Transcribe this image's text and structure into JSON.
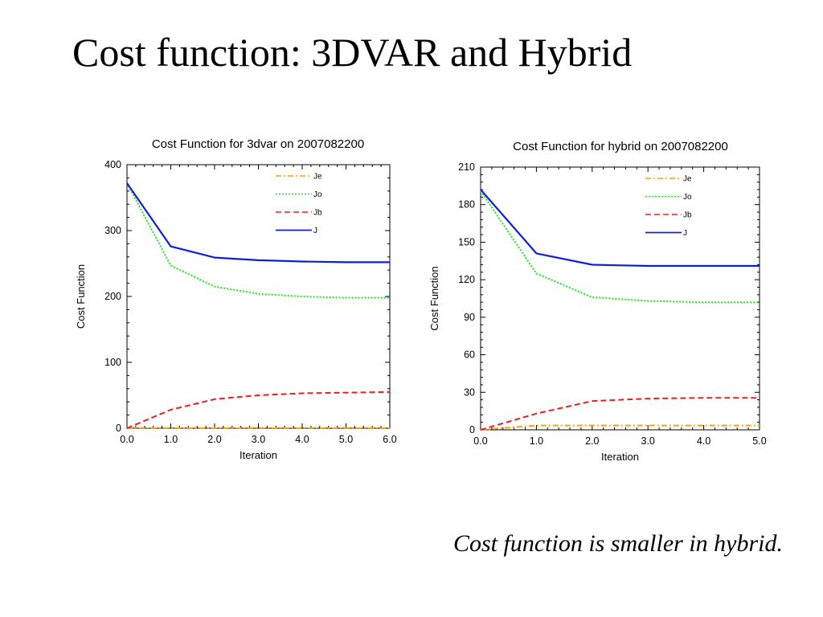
{
  "slide": {
    "title": "Cost function: 3DVAR and Hybrid",
    "caption": "Cost function is smaller in hybrid."
  },
  "chart_data": [
    {
      "type": "line",
      "title": "Cost Function for 3dvar on 2007082200",
      "xlabel": "Iteration",
      "ylabel": "Cost Function",
      "xlim": [
        0,
        6
      ],
      "ylim": [
        0,
        400
      ],
      "x": [
        0,
        1,
        2,
        3,
        4,
        5,
        6
      ],
      "xticks": [
        "0.0",
        "1.0",
        "2.0",
        "3.0",
        "4.0",
        "5.0",
        "6.0"
      ],
      "yticks": [
        "0",
        "100",
        "200",
        "300",
        "400"
      ],
      "legend_position": "top-right",
      "grid": false,
      "series": [
        {
          "name": "Je",
          "color": "#f5a300",
          "dash": "dashdot",
          "values": [
            0,
            0,
            0,
            0,
            0,
            0,
            0
          ]
        },
        {
          "name": "Jo",
          "color": "#1ee61e",
          "dash": "dotted",
          "values": [
            372,
            247,
            215,
            204,
            200,
            198,
            198
          ]
        },
        {
          "name": "Jb",
          "color": "#e82020",
          "dash": "dashed",
          "values": [
            0,
            28,
            44,
            50,
            53,
            54,
            55
          ]
        },
        {
          "name": "J",
          "color": "#1020d0",
          "dash": "solid",
          "values": [
            372,
            276,
            259,
            255,
            253,
            252,
            252
          ]
        }
      ]
    },
    {
      "type": "line",
      "title": "Cost Function for hybrid on 2007082200",
      "xlabel": "Iteration",
      "ylabel": "Cost Function",
      "xlim": [
        0,
        5
      ],
      "ylim": [
        0,
        210
      ],
      "x": [
        0,
        1,
        2,
        3,
        4,
        5
      ],
      "xticks": [
        "0.0",
        "1.0",
        "2.0",
        "3.0",
        "4.0",
        "5.0"
      ],
      "yticks": [
        "0",
        "30",
        "60",
        "90",
        "120",
        "150",
        "180",
        "210"
      ],
      "legend_position": "top-right",
      "grid": false,
      "series": [
        {
          "name": "Je",
          "color": "#f5a300",
          "dash": "dashdot",
          "values": [
            0,
            3.5,
            3.5,
            3.5,
            3.5,
            3.5
          ]
        },
        {
          "name": "Jo",
          "color": "#1ee61e",
          "dash": "dotted",
          "values": [
            191,
            125,
            106,
            103,
            102,
            102
          ]
        },
        {
          "name": "Jb",
          "color": "#e82020",
          "dash": "dashed",
          "values": [
            0,
            13,
            23,
            25,
            25.5,
            25.5
          ]
        },
        {
          "name": "J",
          "color": "#1020d0",
          "dash": "solid",
          "values": [
            192,
            141,
            132,
            131,
            131,
            131
          ]
        }
      ]
    }
  ]
}
